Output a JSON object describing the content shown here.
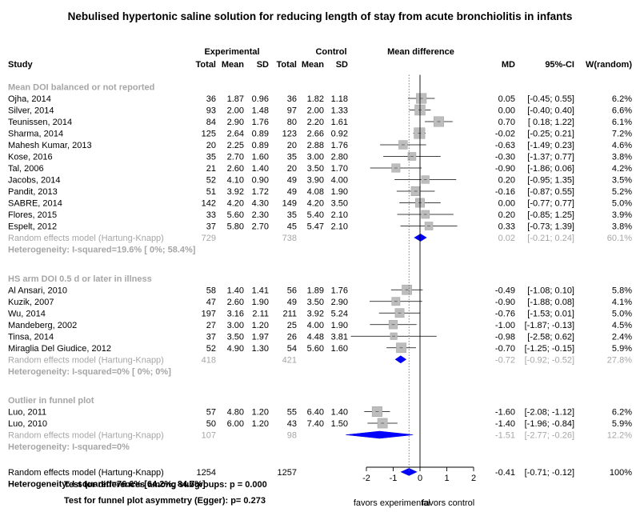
{
  "title": "Nebulised hypertonic saline solution for reducing length of stay from acute bronchiolitis in infants",
  "headers": {
    "experimental": "Experimental",
    "control": "Control",
    "mean_difference": "Mean difference",
    "study": "Study",
    "total_e": "Total",
    "mean_e": "Mean",
    "sd_e": "SD",
    "total_c": "Total",
    "mean_c": "Mean",
    "sd_c": "SD",
    "md": "MD",
    "ci": "95%-CI",
    "weight": "W(random)"
  },
  "chart_data": {
    "type": "forest",
    "title": "Nebulised hypertonic saline solution for reducing length of stay from acute bronchiolitis in infants",
    "xlim": [
      -2,
      2
    ],
    "xticks": [
      "-2",
      "-1",
      "0",
      "1",
      "2"
    ],
    "xlabel_left": "favors experimental",
    "xlabel_right": "favors control",
    "reference_line": 0,
    "overall_dotted_line": -0.41,
    "groups": [
      {
        "label": "Mean DOI balanced or not reported",
        "studies": [
          {
            "name": "Ojha, 2014",
            "n_e": "36",
            "mean_e": "1.87",
            "sd_e": "0.96",
            "n_c": "36",
            "mean_c": "1.82",
            "sd_c": "1.18",
            "md": 0.05,
            "lo": -0.45,
            "hi": 0.55,
            "md_text": "0.05",
            "ci_text": "[-0.45; 0.55]",
            "w_text": "6.2%"
          },
          {
            "name": "Silver, 2014",
            "n_e": "93",
            "mean_e": "2.00",
            "sd_e": "1.48",
            "n_c": "97",
            "mean_c": "2.00",
            "sd_c": "1.33",
            "md": 0.0,
            "lo": -0.4,
            "hi": 0.4,
            "md_text": "0.00",
            "ci_text": "[-0.40; 0.40]",
            "w_text": "6.6%"
          },
          {
            "name": "Teunissen, 2014",
            "n_e": "84",
            "mean_e": "2.90",
            "sd_e": "1.76",
            "n_c": "80",
            "mean_c": "2.20",
            "sd_c": "1.61",
            "md": 0.7,
            "lo": 0.18,
            "hi": 1.22,
            "md_text": "0.70",
            "ci_text": "[ 0.18; 1.22]",
            "w_text": "6.1%"
          },
          {
            "name": "Sharma, 2014",
            "n_e": "125",
            "mean_e": "2.64",
            "sd_e": "0.89",
            "n_c": "123",
            "mean_c": "2.66",
            "sd_c": "0.92",
            "md": -0.02,
            "lo": -0.25,
            "hi": 0.21,
            "md_text": "-0.02",
            "ci_text": "[-0.25; 0.21]",
            "w_text": "7.2%"
          },
          {
            "name": "Mahesh Kumar, 2013",
            "n_e": "20",
            "mean_e": "2.25",
            "sd_e": "0.89",
            "n_c": "20",
            "mean_c": "2.88",
            "sd_c": "1.76",
            "md": -0.63,
            "lo": -1.49,
            "hi": 0.23,
            "md_text": "-0.63",
            "ci_text": "[-1.49; 0.23]",
            "w_text": "4.6%"
          },
          {
            "name": "Kose, 2016",
            "n_e": "35",
            "mean_e": "2.70",
            "sd_e": "1.60",
            "n_c": "35",
            "mean_c": "3.00",
            "sd_c": "2.80",
            "md": -0.3,
            "lo": -1.37,
            "hi": 0.77,
            "md_text": "-0.30",
            "ci_text": "[-1.37; 0.77]",
            "w_text": "3.8%"
          },
          {
            "name": "Tal, 2006",
            "n_e": "21",
            "mean_e": "2.60",
            "sd_e": "1.40",
            "n_c": "20",
            "mean_c": "3.50",
            "sd_c": "1.70",
            "md": -0.9,
            "lo": -1.86,
            "hi": 0.06,
            "md_text": "-0.90",
            "ci_text": "[-1.86; 0.06]",
            "w_text": "4.2%"
          },
          {
            "name": "Jacobs, 2014",
            "n_e": "52",
            "mean_e": "4.10",
            "sd_e": "0.90",
            "n_c": "49",
            "mean_c": "3.90",
            "sd_c": "4.00",
            "md": 0.2,
            "lo": -0.95,
            "hi": 1.35,
            "md_text": "0.20",
            "ci_text": "[-0.95; 1.35]",
            "w_text": "3.5%"
          },
          {
            "name": "Pandit, 2013",
            "n_e": "51",
            "mean_e": "3.92",
            "sd_e": "1.72",
            "n_c": "49",
            "mean_c": "4.08",
            "sd_c": "1.90",
            "md": -0.16,
            "lo": -0.87,
            "hi": 0.55,
            "md_text": "-0.16",
            "ci_text": "[-0.87; 0.55]",
            "w_text": "5.2%"
          },
          {
            "name": "SABRE, 2014",
            "n_e": "142",
            "mean_e": "4.20",
            "sd_e": "4.30",
            "n_c": "149",
            "mean_c": "4.20",
            "sd_c": "3.50",
            "md": 0.0,
            "lo": -0.77,
            "hi": 0.77,
            "md_text": "0.00",
            "ci_text": "[-0.77; 0.77]",
            "w_text": "5.0%"
          },
          {
            "name": "Flores, 2015",
            "n_e": "33",
            "mean_e": "5.60",
            "sd_e": "2.30",
            "n_c": "35",
            "mean_c": "5.40",
            "sd_c": "2.10",
            "md": 0.2,
            "lo": -0.85,
            "hi": 1.25,
            "md_text": "0.20",
            "ci_text": "[-0.85; 1.25]",
            "w_text": "3.9%"
          },
          {
            "name": "Espelt, 2012",
            "n_e": "37",
            "mean_e": "5.80",
            "sd_e": "2.70",
            "n_c": "45",
            "mean_c": "5.47",
            "sd_c": "2.10",
            "md": 0.33,
            "lo": -0.73,
            "hi": 1.39,
            "md_text": "0.33",
            "ci_text": "[-0.73; 1.39]",
            "w_text": "3.8%"
          }
        ],
        "pooled": {
          "label": "Random effects model  (Hartung-Knapp)",
          "n_e": "729",
          "n_c": "738",
          "md": 0.02,
          "lo": -0.21,
          "hi": 0.24,
          "md_text": "0.02",
          "ci_text": "[-0.21; 0.24]",
          "w_text": "60.1%"
        },
        "heterogeneity": "Heterogeneity: I-squared=19.6% [ 0%; 58.4%]"
      },
      {
        "label": "HS arm DOI 0.5 d or later in illness",
        "studies": [
          {
            "name": "Al Ansari, 2010",
            "n_e": "58",
            "mean_e": "1.40",
            "sd_e": "1.41",
            "n_c": "56",
            "mean_c": "1.89",
            "sd_c": "1.76",
            "md": -0.49,
            "lo": -1.08,
            "hi": 0.1,
            "md_text": "-0.49",
            "ci_text": "[-1.08; 0.10]",
            "w_text": "5.8%"
          },
          {
            "name": "Kuzik, 2007",
            "n_e": "47",
            "mean_e": "2.60",
            "sd_e": "1.90",
            "n_c": "49",
            "mean_c": "3.50",
            "sd_c": "2.90",
            "md": -0.9,
            "lo": -1.88,
            "hi": 0.08,
            "md_text": "-0.90",
            "ci_text": "[-1.88; 0.08]",
            "w_text": "4.1%"
          },
          {
            "name": "Wu, 2014",
            "n_e": "197",
            "mean_e": "3.16",
            "sd_e": "2.11",
            "n_c": "211",
            "mean_c": "3.92",
            "sd_c": "5.24",
            "md": -0.76,
            "lo": -1.53,
            "hi": 0.01,
            "md_text": "-0.76",
            "ci_text": "[-1.53; 0.01]",
            "w_text": "5.0%"
          },
          {
            "name": "Mandeberg, 2002",
            "n_e": "27",
            "mean_e": "3.00",
            "sd_e": "1.20",
            "n_c": "25",
            "mean_c": "4.00",
            "sd_c": "1.90",
            "md": -1.0,
            "lo": -1.87,
            "hi": -0.13,
            "md_text": "-1.00",
            "ci_text": "[-1.87; -0.13]",
            "w_text": "4.5%"
          },
          {
            "name": "Tinsa, 2014",
            "n_e": "37",
            "mean_e": "3.50",
            "sd_e": "1.97",
            "n_c": "26",
            "mean_c": "4.48",
            "sd_c": "3.81",
            "md": -0.98,
            "lo": -2.58,
            "hi": 0.62,
            "md_text": "-0.98",
            "ci_text": "[-2.58; 0.62]",
            "w_text": "2.4%"
          },
          {
            "name": "Miraglia Del Giudice, 2012",
            "n_e": "52",
            "mean_e": "4.90",
            "sd_e": "1.30",
            "n_c": "54",
            "mean_c": "5.60",
            "sd_c": "1.60",
            "md": -0.7,
            "lo": -1.25,
            "hi": -0.15,
            "md_text": "-0.70",
            "ci_text": "[-1.25; -0.15]",
            "w_text": "5.9%"
          }
        ],
        "pooled": {
          "label": "Random effects model  (Hartung-Knapp)",
          "n_e": "418",
          "n_c": "421",
          "md": -0.72,
          "lo": -0.92,
          "hi": -0.52,
          "md_text": "-0.72",
          "ci_text": "[-0.92; -0.52]",
          "w_text": "27.8%"
        },
        "heterogeneity": "Heterogeneity: I-squared=0% [ 0%;    0%]"
      },
      {
        "label": "Outlier in funnel plot",
        "studies": [
          {
            "name": "Luo, 2011",
            "n_e": "57",
            "mean_e": "4.80",
            "sd_e": "1.20",
            "n_c": "55",
            "mean_c": "6.40",
            "sd_c": "1.40",
            "md": -1.6,
            "lo": -2.08,
            "hi": -1.12,
            "md_text": "-1.60",
            "ci_text": "[-2.08; -1.12]",
            "w_text": "6.2%"
          },
          {
            "name": "Luo, 2010",
            "n_e": "50",
            "mean_e": "6.00",
            "sd_e": "1.20",
            "n_c": "43",
            "mean_c": "7.40",
            "sd_c": "1.50",
            "md": -1.4,
            "lo": -1.96,
            "hi": -0.84,
            "md_text": "-1.40",
            "ci_text": "[-1.96; -0.84]",
            "w_text": "5.9%"
          }
        ],
        "pooled": {
          "label": "Random effects model  (Hartung-Knapp)",
          "n_e": "107",
          "n_c": "98",
          "md": -1.51,
          "lo": -2.77,
          "hi": -0.26,
          "md_text": "-1.51",
          "ci_text": "[-2.77; -0.26]",
          "w_text": "12.2%"
        },
        "heterogeneity": "Heterogeneity: I-squared=0%"
      }
    ],
    "overall": {
      "label": "Random effects model  (Hartung-Knapp)",
      "n_e": "1254",
      "n_c": "1257",
      "md": -0.41,
      "lo": -0.71,
      "hi": -0.12,
      "md_text": "-0.41",
      "ci_text": "[-0.71; -0.12]",
      "w_text": "100%"
    },
    "overall_heterogeneity": "Heterogeneity: I-squared=76.6% [64.2%; 84.7%]",
    "test_subgroups": "Test for differences among subgroups: p = 0.000",
    "test_egger": "Test for funnel plot asymmetry (Egger): p= 0.273"
  }
}
